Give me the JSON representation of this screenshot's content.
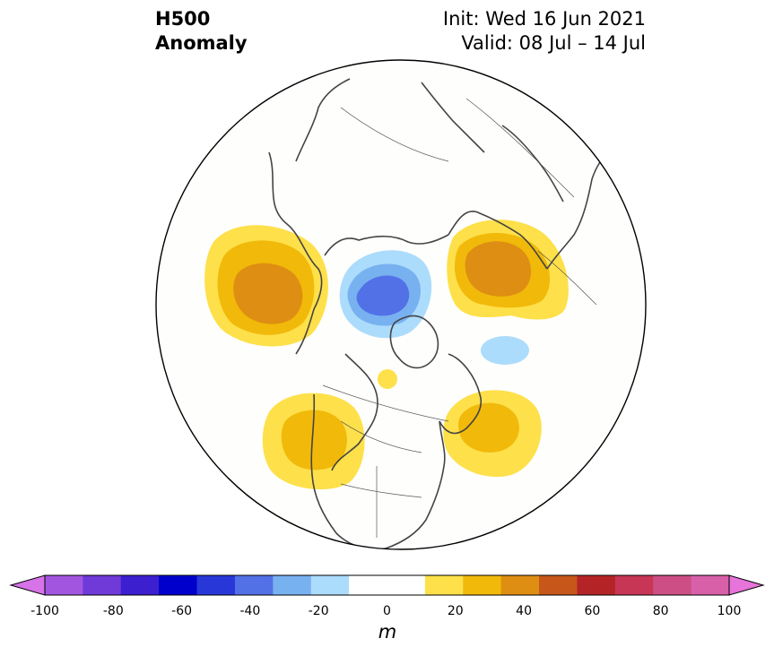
{
  "header": {
    "title_line1": "H500",
    "title_line2": "Anomaly",
    "init": "Init: Wed 16 Jun 2021",
    "valid": "Valid: 08 Jul – 14 Jul"
  },
  "colorbar": {
    "unit": "m",
    "tick_labels": [
      "-100",
      "-80",
      "-60",
      "-40",
      "-20",
      "0",
      "20",
      "40",
      "60",
      "80",
      "100"
    ],
    "colors": [
      "#d673e8",
      "#a256e0",
      "#6f3ad8",
      "#3c1fcf",
      "#0000cc",
      "#2838d8",
      "#5271e6",
      "#78b1f0",
      "#acdcfc",
      "#ffffff",
      "#ffffff",
      "#fee04a",
      "#f1b90a",
      "#de8e12",
      "#c7561a",
      "#b42427",
      "#c73654",
      "#cd4e84",
      "#d860a9",
      "#e674da"
    ]
  },
  "anomalies": [
    {
      "region": "North Pacific / Bering Sea",
      "level": 40
    },
    {
      "region": "Arctic north of Siberia",
      "level": -40
    },
    {
      "region": "Western Russia / Scandinavia",
      "level": 40
    },
    {
      "region": "North Atlantic (Greenland–Iceland)",
      "level": -20
    },
    {
      "region": "Western North America",
      "level": 30
    },
    {
      "region": "North Atlantic off Newfoundland",
      "level": 30
    },
    {
      "region": "Northern Canada (small)",
      "level": 20
    }
  ]
}
